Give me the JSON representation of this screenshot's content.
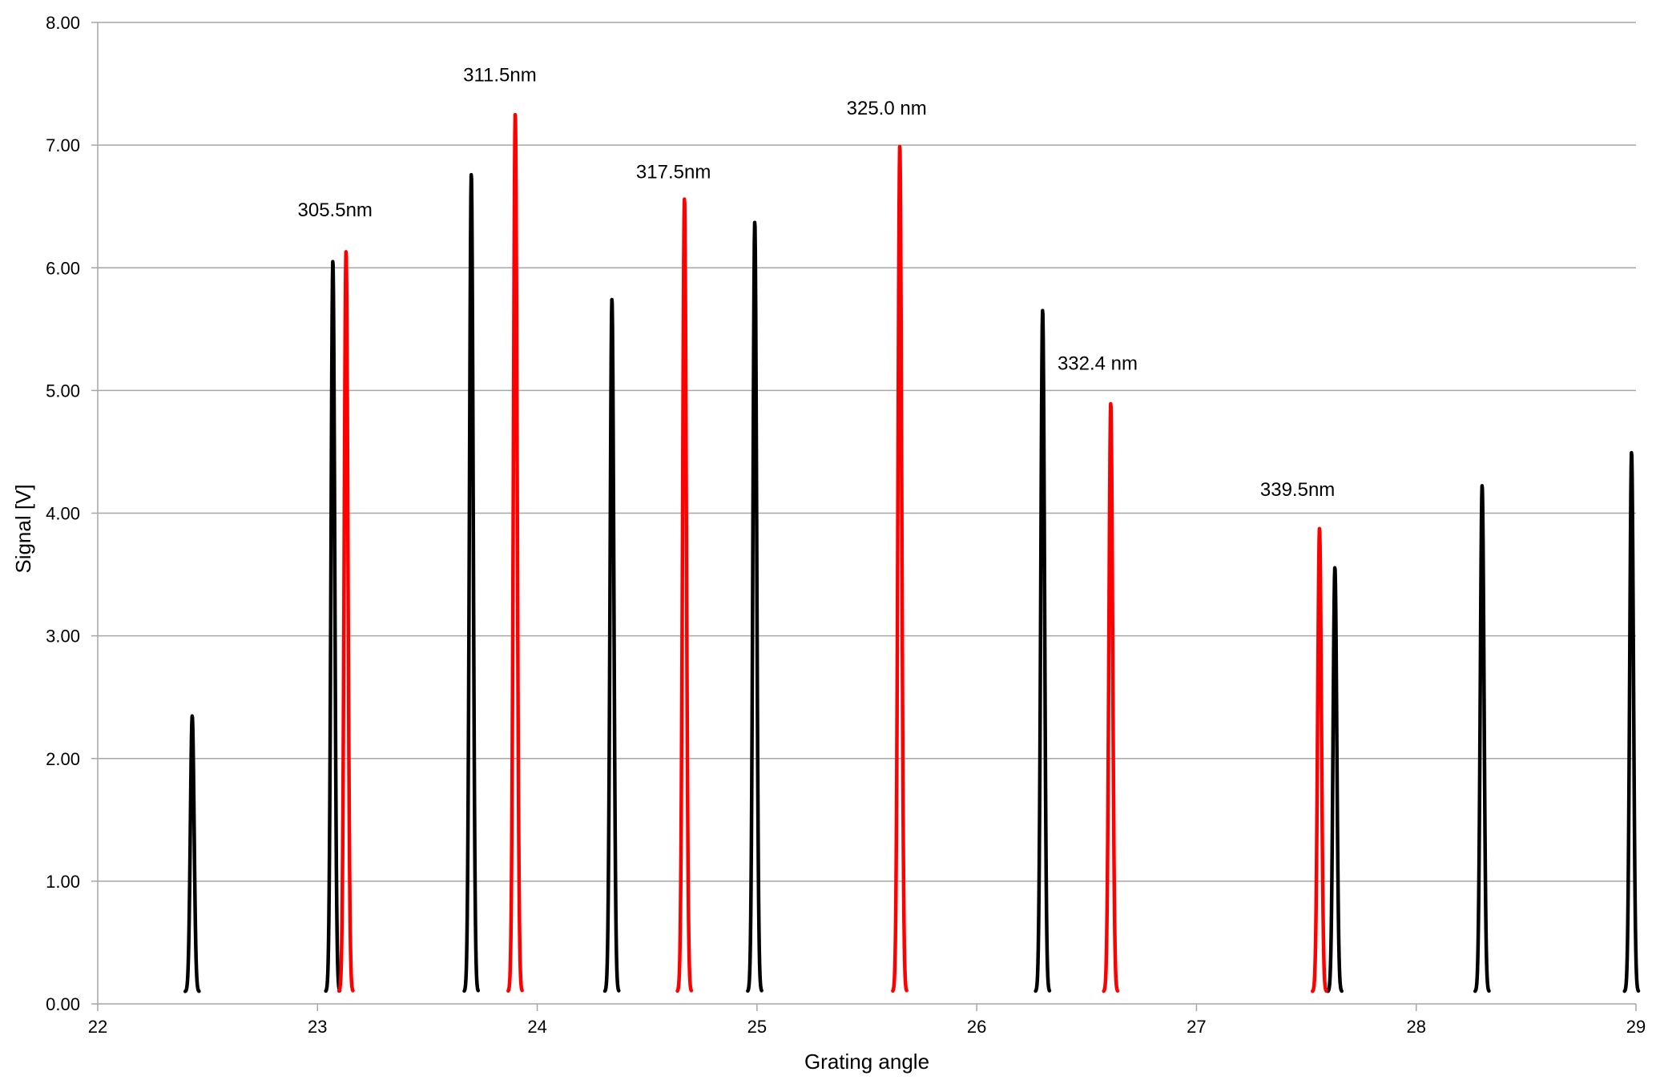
{
  "chart_data": {
    "type": "line",
    "title": "",
    "xlabel": "Grating angle",
    "ylabel": "Signal [V]",
    "xlim": [
      22,
      29
    ],
    "ylim": [
      0,
      8
    ],
    "x_ticks": [
      "22",
      "23",
      "24",
      "25",
      "26",
      "27",
      "28",
      "29"
    ],
    "y_ticks": [
      "0.00",
      "1.00",
      "2.00",
      "3.00",
      "4.00",
      "5.00",
      "6.00",
      "7.00",
      "8.00"
    ],
    "grid": "horizontal",
    "legend": "none",
    "colors": {
      "black_series": "#000000",
      "red_series": "#ff0000",
      "grid": "#a6a6a6",
      "axis": "#a6a6a6"
    },
    "series": [
      {
        "color": "#000000",
        "peaks": [
          {
            "x": 22.43,
            "y": 2.35
          },
          {
            "x": 23.07,
            "y": 6.06
          },
          {
            "x": 23.7,
            "y": 6.77
          },
          {
            "x": 24.34,
            "y": 5.75
          },
          {
            "x": 24.99,
            "y": 6.38
          },
          {
            "x": 26.3,
            "y": 5.66
          },
          {
            "x": 27.63,
            "y": 3.56
          },
          {
            "x": 28.3,
            "y": 4.23
          },
          {
            "x": 28.98,
            "y": 4.5
          }
        ]
      },
      {
        "color": "#ff0000",
        "peaks": [
          {
            "x": 23.13,
            "y": 6.14
          },
          {
            "x": 23.9,
            "y": 7.26
          },
          {
            "x": 24.67,
            "y": 6.57
          },
          {
            "x": 25.65,
            "y": 7.0
          },
          {
            "x": 26.61,
            "y": 4.9
          },
          {
            "x": 27.56,
            "y": 3.88
          }
        ]
      }
    ],
    "annotations": [
      {
        "text": "305.5nm",
        "x": 23.08,
        "y": 6.42
      },
      {
        "text": "311.5nm",
        "x": 23.83,
        "y": 7.52
      },
      {
        "text": "317.5nm",
        "x": 24.62,
        "y": 6.73
      },
      {
        "text": "325.0 nm",
        "x": 25.59,
        "y": 7.25
      },
      {
        "text": "332.4 nm",
        "x": 26.55,
        "y": 5.17
      },
      {
        "text": "339.5nm",
        "x": 27.46,
        "y": 4.14
      }
    ]
  }
}
